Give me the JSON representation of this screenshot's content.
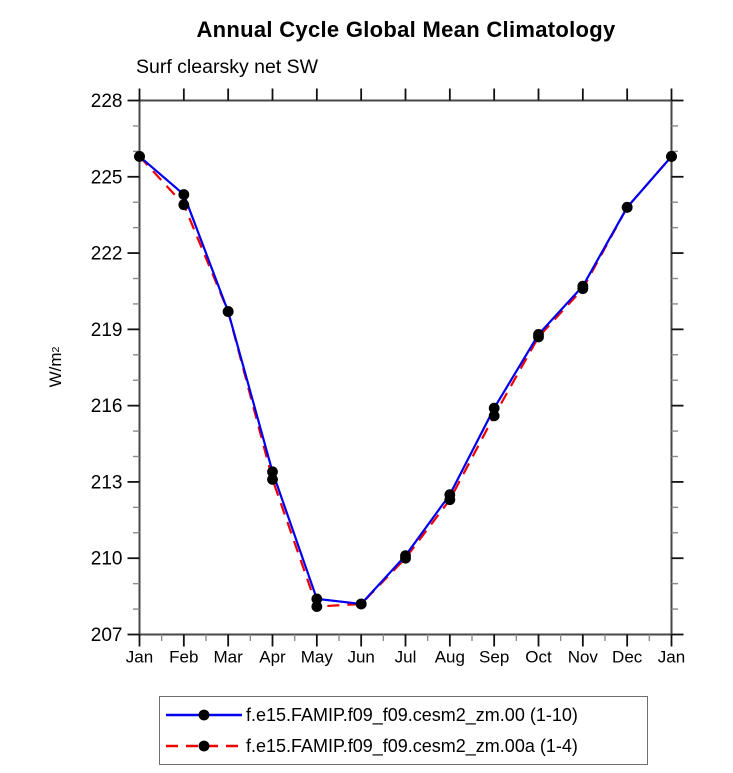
{
  "chart_data": {
    "type": "line",
    "title": "Annual Cycle Global Mean Climatology",
    "subtitle": "Surf clearsky net SW",
    "ylabel": {
      "base": "W/m",
      "sup": "2"
    },
    "x_categories": [
      "Jan",
      "Feb",
      "Mar",
      "Apr",
      "May",
      "Jun",
      "Jul",
      "Aug",
      "Sep",
      "Oct",
      "Nov",
      "Dec",
      "Jan"
    ],
    "y_axis": {
      "min": 207,
      "max": 228,
      "major_step": 3,
      "minor_step": 1,
      "tick_labels": [
        "207",
        "210",
        "213",
        "216",
        "219",
        "222",
        "225",
        "228"
      ]
    },
    "series": [
      {
        "name": "f.e15.FAMIP.f09_f09.cesm2_zm.00 (1-10)",
        "color": "#0000ee",
        "style": "solid",
        "marker": "black-dot",
        "values": [
          225.8,
          224.3,
          219.7,
          213.4,
          208.4,
          208.2,
          210.1,
          212.5,
          215.9,
          218.8,
          220.7,
          223.8,
          225.8
        ]
      },
      {
        "name": "f.e15.FAMIP.f09_f09.cesm2_zm.00a (1-4)",
        "color": "#ee0000",
        "style": "dashed",
        "marker": "black-dot",
        "values": [
          225.8,
          223.9,
          219.7,
          213.1,
          208.1,
          208.2,
          210.0,
          212.3,
          215.6,
          218.7,
          220.6,
          223.8,
          225.8
        ]
      }
    ],
    "marker_color": "#000000",
    "grid": false,
    "legend_position": "bottom",
    "xlim_labels": [
      "Jan",
      "Jan"
    ],
    "ylim": [
      207,
      228
    ]
  }
}
